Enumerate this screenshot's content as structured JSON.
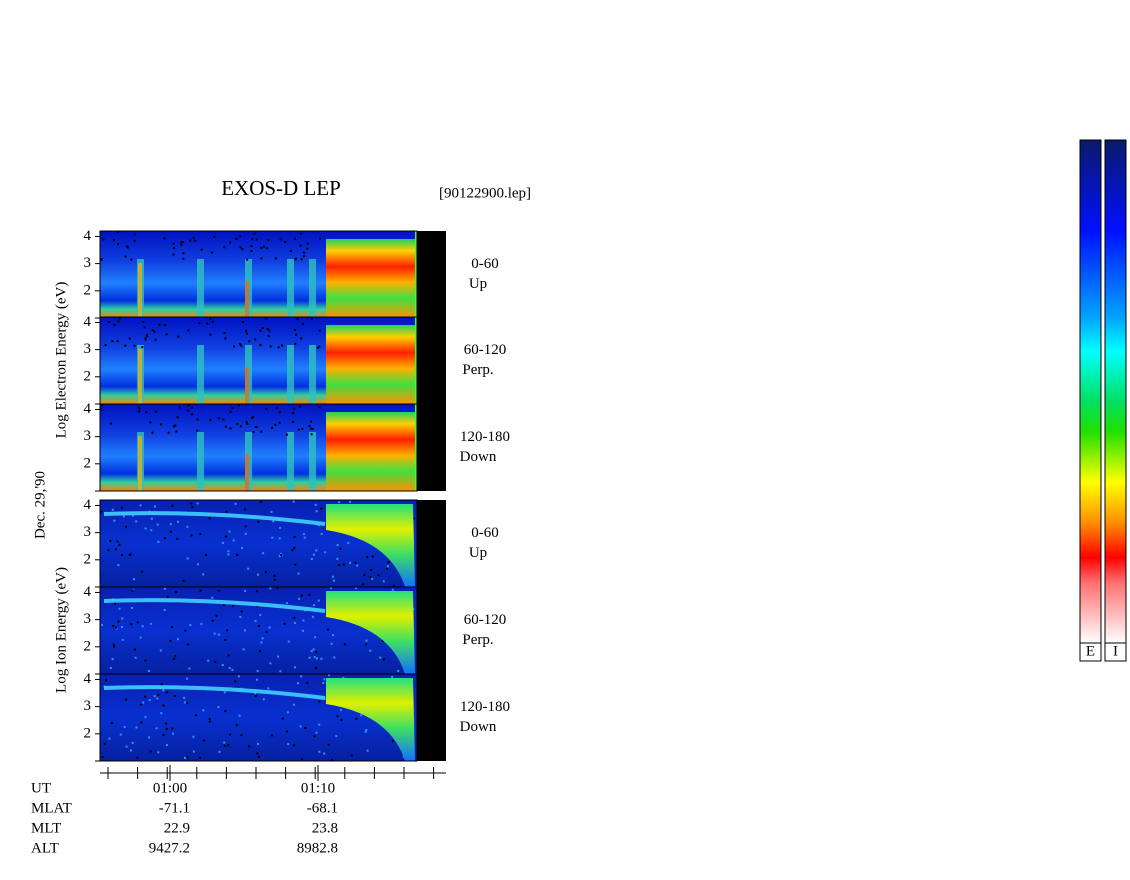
{
  "title": "EXOS-D LEP",
  "file": "[90122900.lep]",
  "date": "Dec. 29,'90",
  "electron_axis_label": "Log  Electron  Energy (eV)",
  "ion_axis_label": "Log  Ion  Energy (eV)",
  "ylim": [
    1,
    4.2
  ],
  "panels": [
    {
      "species": "electron",
      "yticks": [
        2,
        3,
        4
      ],
      "angle": "0-60",
      "direction": "Up"
    },
    {
      "species": "electron",
      "yticks": [
        2,
        3,
        4
      ],
      "angle": "60-120",
      "direction": "Perp."
    },
    {
      "species": "electron",
      "yticks": [
        2,
        3,
        4
      ],
      "angle": "120-180",
      "direction": "Down"
    },
    {
      "species": "ion",
      "yticks": [
        2,
        3,
        4
      ],
      "angle": "0-60",
      "direction": "Up"
    },
    {
      "species": "ion",
      "yticks": [
        2,
        3,
        4
      ],
      "angle": "60-120",
      "direction": "Perp."
    },
    {
      "species": "ion",
      "yticks": [
        2,
        3,
        4
      ],
      "angle": "120-180",
      "direction": "Down"
    }
  ],
  "xticks": [
    "01:00",
    "01:10"
  ],
  "orbit": [
    {
      "name": "UT",
      "values": []
    },
    {
      "name": "MLAT",
      "values": [
        -71.1,
        -68.1
      ]
    },
    {
      "name": "MLT",
      "values": [
        22.9,
        23.8
      ]
    },
    {
      "name": "ALT",
      "values": [
        9427.2,
        8982.8
      ]
    }
  ],
  "colorbars": [
    "E",
    "I"
  ]
}
